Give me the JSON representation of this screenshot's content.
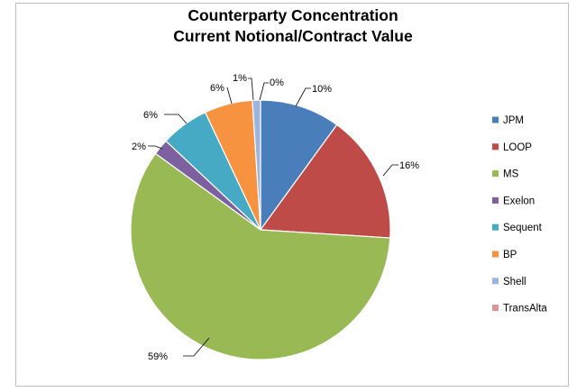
{
  "chart_data": {
    "type": "pie",
    "title": [
      "Counterparty Concentration",
      "Current Notional/Contract Value"
    ],
    "slices": [
      {
        "name": "JPM",
        "value": 10,
        "label": "10%",
        "color": "#4a7ebb"
      },
      {
        "name": "LOOP",
        "value": 16,
        "label": "16%",
        "color": "#be4b48"
      },
      {
        "name": "MS",
        "value": 59,
        "label": "59%",
        "color": "#98b954"
      },
      {
        "name": "Exelon",
        "value": 2,
        "label": "2%",
        "color": "#7d60a0"
      },
      {
        "name": "Sequent",
        "value": 6,
        "label": "6%",
        "color": "#46aac5"
      },
      {
        "name": "BP",
        "value": 6,
        "label": "6%",
        "color": "#f69240"
      },
      {
        "name": "Shell",
        "value": 1,
        "label": "1%",
        "color": "#9cb4de"
      },
      {
        "name": "TransAlta",
        "value": 0,
        "label": "0%",
        "color": "#d9959a"
      }
    ],
    "legend_position": "right",
    "start_angle": "12 o'clock, clockwise"
  }
}
